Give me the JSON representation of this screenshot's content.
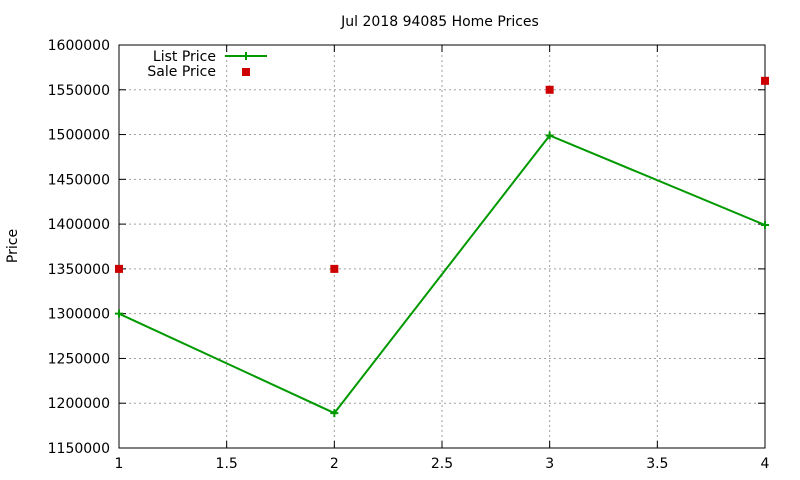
{
  "chart_data": {
    "type": "line",
    "title": "Jul 2018 94085 Home Prices",
    "xlabel": "",
    "ylabel": "Price",
    "xlim": [
      1,
      4
    ],
    "ylim": [
      1150000,
      1600000
    ],
    "x_ticks": [
      "1",
      "1.5",
      "2",
      "2.5",
      "3",
      "3.5",
      "4"
    ],
    "y_ticks": [
      "1150000",
      "1200000",
      "1250000",
      "1300000",
      "1350000",
      "1400000",
      "1450000",
      "1500000",
      "1550000",
      "1600000"
    ],
    "grid": true,
    "legend_position": "top-left",
    "series": [
      {
        "name": "List Price",
        "style": "line-with-plus-markers",
        "color": "#009900",
        "x": [
          1,
          2,
          3,
          4
        ],
        "y": [
          1300000,
          1189000,
          1499000,
          1399000
        ]
      },
      {
        "name": "Sale Price",
        "style": "square-points",
        "color": "#cc0000",
        "x": [
          1,
          2,
          3,
          4
        ],
        "y": [
          1350000,
          1350000,
          1550000,
          1560000
        ]
      }
    ]
  }
}
